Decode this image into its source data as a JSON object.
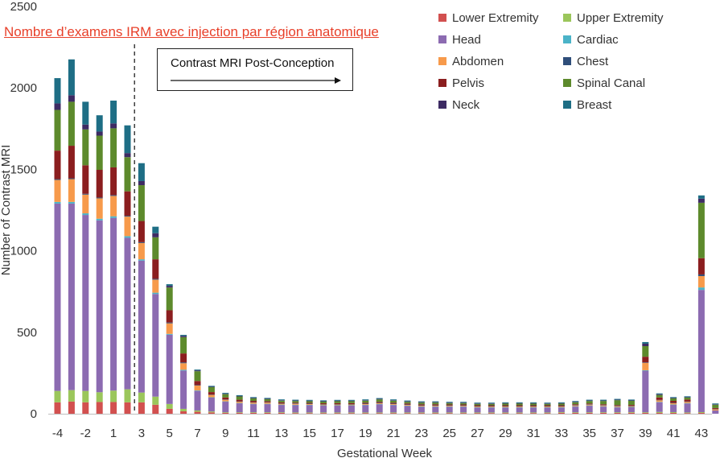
{
  "chart_data": {
    "type": "bar",
    "stacked": true,
    "title": "",
    "xlabel": "Gestational Week",
    "ylabel": "Number of Contrast MRI",
    "ylim": [
      0,
      2500
    ],
    "yticks": [
      0,
      500,
      1000,
      1500,
      2000,
      2500
    ],
    "xtick_labels": [
      "-4",
      "-2",
      "1",
      "3",
      "5",
      "7",
      "9",
      "11",
      "13",
      "15",
      "17",
      "19",
      "21",
      "23",
      "25",
      "27",
      "29",
      "31",
      "33",
      "35",
      "37",
      "39",
      "41",
      "43"
    ],
    "categories": [
      -4,
      -3,
      -2,
      -1,
      1,
      2,
      3,
      4,
      5,
      6,
      7,
      8,
      9,
      10,
      11,
      12,
      13,
      14,
      15,
      16,
      17,
      18,
      19,
      20,
      21,
      22,
      23,
      24,
      25,
      26,
      27,
      28,
      29,
      30,
      31,
      32,
      33,
      34,
      35,
      36,
      37,
      38,
      39,
      40,
      41,
      42,
      43,
      44
    ],
    "legend_position": "top-right",
    "series": [
      {
        "name": "Lower Extremity",
        "color": "#d2504f",
        "values": [
          70,
          75,
          70,
          72,
          72,
          70,
          70,
          55,
          30,
          15,
          12,
          8,
          5,
          5,
          5,
          5,
          5,
          4,
          4,
          4,
          4,
          4,
          4,
          4,
          4,
          4,
          4,
          4,
          4,
          4,
          4,
          4,
          4,
          4,
          4,
          4,
          6,
          5,
          5,
          5,
          5,
          6,
          5,
          5,
          5,
          4,
          5,
          0
        ]
      },
      {
        "name": "Upper Extremity",
        "color": "#9bc65b",
        "values": [
          70,
          70,
          70,
          60,
          70,
          80,
          60,
          50,
          30,
          15,
          8,
          6,
          4,
          4,
          4,
          4,
          4,
          4,
          4,
          4,
          4,
          4,
          4,
          4,
          4,
          4,
          4,
          4,
          4,
          4,
          4,
          4,
          4,
          4,
          4,
          4,
          4,
          4,
          4,
          4,
          4,
          4,
          4,
          6,
          5,
          4,
          5,
          0
        ]
      },
      {
        "name": "Head",
        "color": "#8c6bb1",
        "values": [
          1150,
          1145,
          1080,
          1055,
          1060,
          930,
          810,
          630,
          425,
          235,
          120,
          85,
          65,
          55,
          50,
          50,
          45,
          45,
          45,
          42,
          42,
          42,
          45,
          50,
          45,
          40,
          35,
          35,
          35,
          35,
          30,
          30,
          30,
          30,
          30,
          30,
          28,
          35,
          40,
          35,
          30,
          30,
          255,
          60,
          45,
          55,
          750,
          20
        ]
      },
      {
        "name": "Cardiac",
        "color": "#4bb3c8",
        "values": [
          10,
          10,
          10,
          10,
          10,
          10,
          8,
          8,
          5,
          5,
          3,
          2,
          2,
          2,
          2,
          2,
          2,
          2,
          2,
          2,
          2,
          2,
          2,
          2,
          2,
          2,
          2,
          2,
          2,
          2,
          2,
          2,
          2,
          2,
          2,
          2,
          2,
          2,
          2,
          2,
          2,
          2,
          3,
          2,
          2,
          2,
          15,
          0
        ]
      },
      {
        "name": "Abdomen",
        "color": "#f79a4b",
        "values": [
          135,
          140,
          115,
          125,
          125,
          120,
          100,
          80,
          65,
          40,
          30,
          15,
          10,
          8,
          8,
          8,
          6,
          6,
          5,
          5,
          5,
          5,
          5,
          5,
          5,
          5,
          5,
          5,
          5,
          5,
          5,
          5,
          5,
          5,
          5,
          5,
          5,
          5,
          5,
          5,
          5,
          5,
          45,
          10,
          8,
          8,
          70,
          8
        ]
      },
      {
        "name": "Chest",
        "color": "#2f4e7a",
        "values": [
          5,
          5,
          5,
          5,
          5,
          5,
          5,
          5,
          5,
          5,
          3,
          2,
          2,
          2,
          2,
          2,
          2,
          2,
          2,
          2,
          2,
          2,
          2,
          2,
          2,
          2,
          2,
          2,
          2,
          2,
          2,
          2,
          2,
          2,
          2,
          2,
          2,
          2,
          2,
          2,
          2,
          2,
          3,
          2,
          2,
          2,
          10,
          2
        ]
      },
      {
        "name": "Pelvis",
        "color": "#8b1e1f",
        "values": [
          175,
          200,
          175,
          170,
          170,
          150,
          130,
          120,
          75,
          55,
          25,
          15,
          12,
          10,
          8,
          6,
          6,
          5,
          5,
          5,
          6,
          6,
          6,
          6,
          6,
          6,
          6,
          6,
          5,
          5,
          5,
          5,
          5,
          5,
          5,
          5,
          5,
          5,
          5,
          5,
          5,
          5,
          35,
          15,
          12,
          12,
          100,
          5
        ]
      },
      {
        "name": "Spinal Canal",
        "color": "#5d8a2c",
        "values": [
          250,
          270,
          220,
          210,
          240,
          210,
          220,
          135,
          140,
          100,
          60,
          30,
          20,
          20,
          15,
          12,
          10,
          10,
          10,
          10,
          12,
          12,
          12,
          15,
          12,
          10,
          10,
          10,
          8,
          8,
          8,
          8,
          10,
          10,
          10,
          8,
          10,
          12,
          15,
          20,
          30,
          25,
          65,
          15,
          15,
          12,
          340,
          20
        ]
      },
      {
        "name": "Neck",
        "color": "#3d2b63",
        "values": [
          40,
          40,
          30,
          25,
          30,
          25,
          25,
          25,
          10,
          8,
          5,
          3,
          3,
          3,
          3,
          3,
          3,
          3,
          3,
          3,
          3,
          3,
          3,
          3,
          3,
          3,
          3,
          3,
          3,
          3,
          3,
          3,
          3,
          3,
          3,
          3,
          3,
          3,
          3,
          3,
          3,
          3,
          15,
          5,
          3,
          3,
          25,
          3
        ]
      },
      {
        "name": "Breast",
        "color": "#1e6e85",
        "values": [
          155,
          220,
          140,
          100,
          140,
          170,
          110,
          40,
          10,
          6,
          5,
          5,
          5,
          5,
          5,
          5,
          5,
          5,
          5,
          5,
          5,
          5,
          5,
          5,
          5,
          5,
          5,
          5,
          5,
          5,
          5,
          5,
          5,
          5,
          5,
          5,
          5,
          5,
          5,
          5,
          5,
          5,
          10,
          5,
          5,
          5,
          20,
          5
        ]
      }
    ]
  },
  "annotations": {
    "overlay_text": "Nombre d’examens IRM avec injection par région anatomique",
    "box_label": "Contrast MRI Post-Conception"
  }
}
